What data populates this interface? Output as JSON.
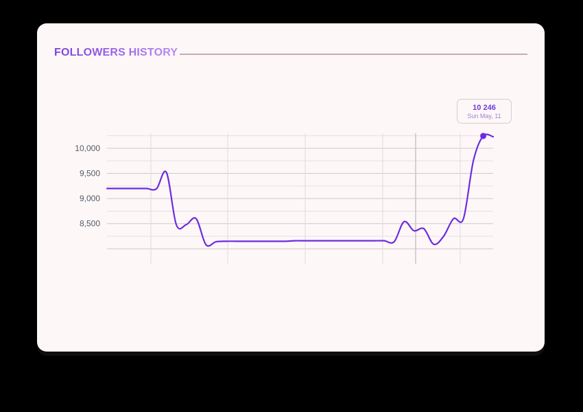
{
  "card": {
    "title": "FOLLOWERS HISTORY"
  },
  "colors": {
    "line": "#6d2be0",
    "grid": "#d8d3d6",
    "axis_text": "#555a64",
    "rule": "#c8aab5",
    "background": "#fdf7f8"
  },
  "tooltip": {
    "value": "10 246",
    "date": "Sun May, 11"
  },
  "chart_data": {
    "type": "line",
    "title": "FOLLOWERS HISTORY",
    "xlabel": "",
    "ylabel": "",
    "ylim": [
      7950,
      10300
    ],
    "y_ticks": [
      10000,
      9500,
      9000,
      8500
    ],
    "y_tick_labels": [
      "10,000",
      "9,500",
      "9,000",
      "8,500"
    ],
    "grid": true,
    "series": [
      {
        "values": [
          9200,
          9200,
          9200,
          9200,
          9200,
          9195,
          9520,
          8480,
          8480,
          8600,
          8080,
          8140,
          8150,
          8150,
          8150,
          8150,
          8150,
          8150,
          8150,
          8160,
          8160,
          8160,
          8160,
          8160,
          8160,
          8160,
          8160,
          8160,
          8160,
          8140,
          8540,
          8360,
          8400,
          8090,
          8250,
          8600,
          8600,
          9750,
          10246,
          10230
        ]
      }
    ],
    "highlight": {
      "index": 38,
      "value": 10246,
      "label": "10 246",
      "date": "Sun May, 11"
    }
  }
}
